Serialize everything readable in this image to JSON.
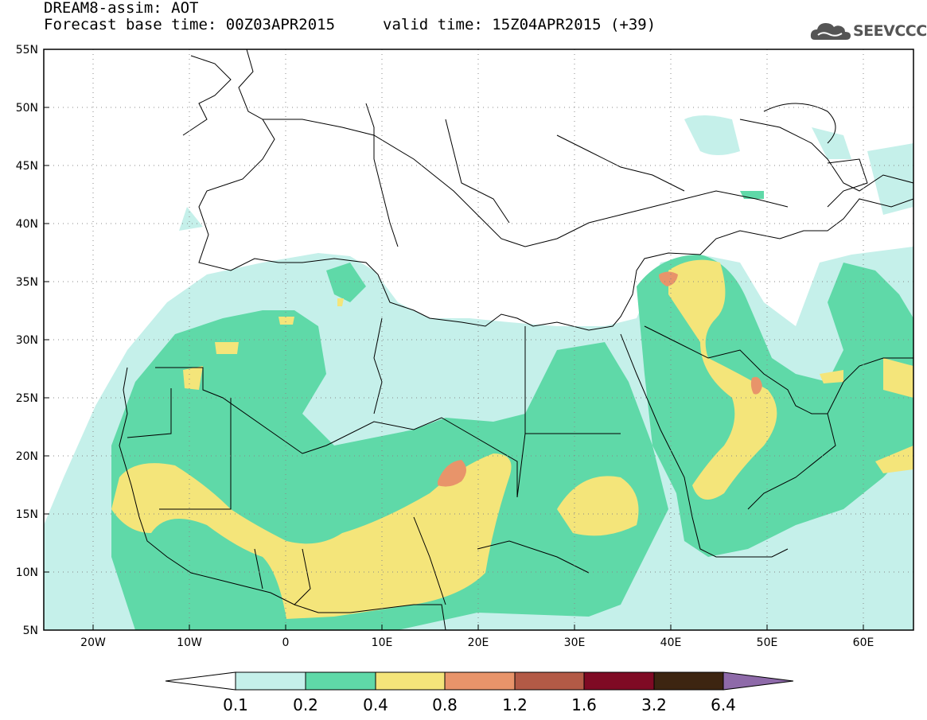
{
  "header": {
    "title": "DREAM8-assim: AOT",
    "forecast_base": "Forecast base time: 00Z03APR2015",
    "valid_time": "valid time: 15Z04APR2015 (+39)"
  },
  "logo": {
    "text": "SEEVCCC",
    "icon": "cloud-logo-icon"
  },
  "map": {
    "lon_range": [
      -25,
      65
    ],
    "lat_range": [
      5,
      55
    ],
    "lat_labels": [
      "55N",
      "50N",
      "45N",
      "40N",
      "35N",
      "30N",
      "25N",
      "20N",
      "15N",
      "10N",
      "5N"
    ],
    "lon_labels": [
      "20W",
      "10W",
      "0",
      "10E",
      "20E",
      "30E",
      "40E",
      "50E",
      "60E"
    ],
    "grid": "dotted"
  },
  "colorbar": {
    "labels": [
      "0.1",
      "0.2",
      "0.4",
      "0.8",
      "1.2",
      "1.6",
      "3.2",
      "6.4"
    ],
    "colors": [
      "#ffffff",
      "#c5f0ea",
      "#5fd9a8",
      "#f4e57a",
      "#e8946a",
      "#b35a46",
      "#7f0a24",
      "#3d2511",
      "#8e6aa9"
    ]
  }
}
